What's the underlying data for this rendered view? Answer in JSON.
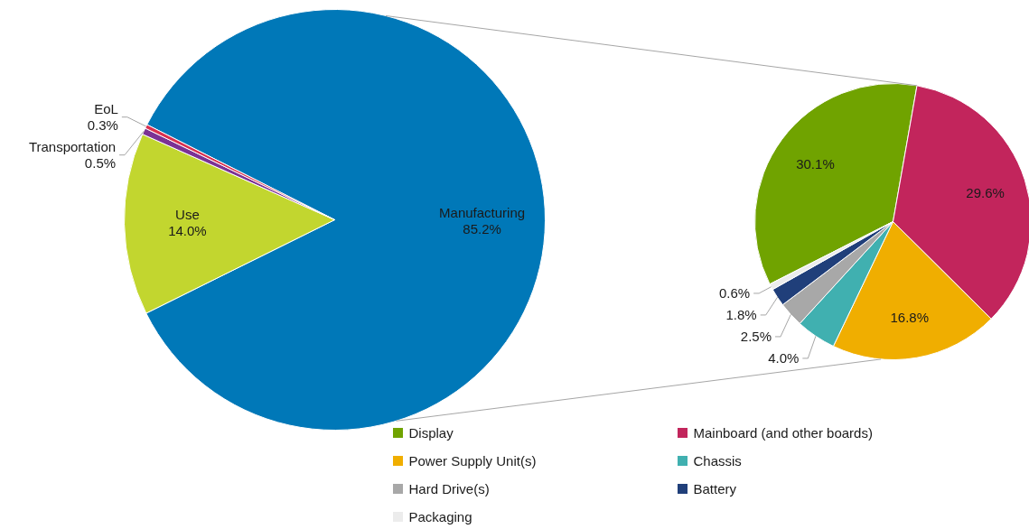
{
  "chart_data": [
    {
      "type": "pie",
      "categories": [
        "Manufacturing",
        "Use",
        "Transportation",
        "EoL"
      ],
      "values": [
        85.2,
        14.0,
        0.5,
        0.3
      ],
      "colors": [
        "#0078b8",
        "#c2d62f",
        "#7b3294",
        "#d9304f"
      ],
      "value_labels": [
        "85.2%",
        "14.0%",
        "0.5%",
        "0.3%"
      ]
    },
    {
      "type": "pie",
      "categories": [
        "Display",
        "Mainboard (and other boards)",
        "Power Supply Unit(s)",
        "Chassis",
        "Hard Drive(s)",
        "Battery",
        "Packaging"
      ],
      "values": [
        30.1,
        29.6,
        16.8,
        4.0,
        2.5,
        1.8,
        0.6
      ],
      "colors": [
        "#70a300",
        "#c2255c",
        "#f0ae00",
        "#40b0b0",
        "#a8a8a8",
        "#203f7a",
        "#ececec"
      ],
      "value_labels": [
        "30.1%",
        "29.6%",
        "16.8%",
        "4.0%",
        "2.5%",
        "1.8%",
        "0.6%"
      ],
      "legend": "bottom"
    }
  ]
}
